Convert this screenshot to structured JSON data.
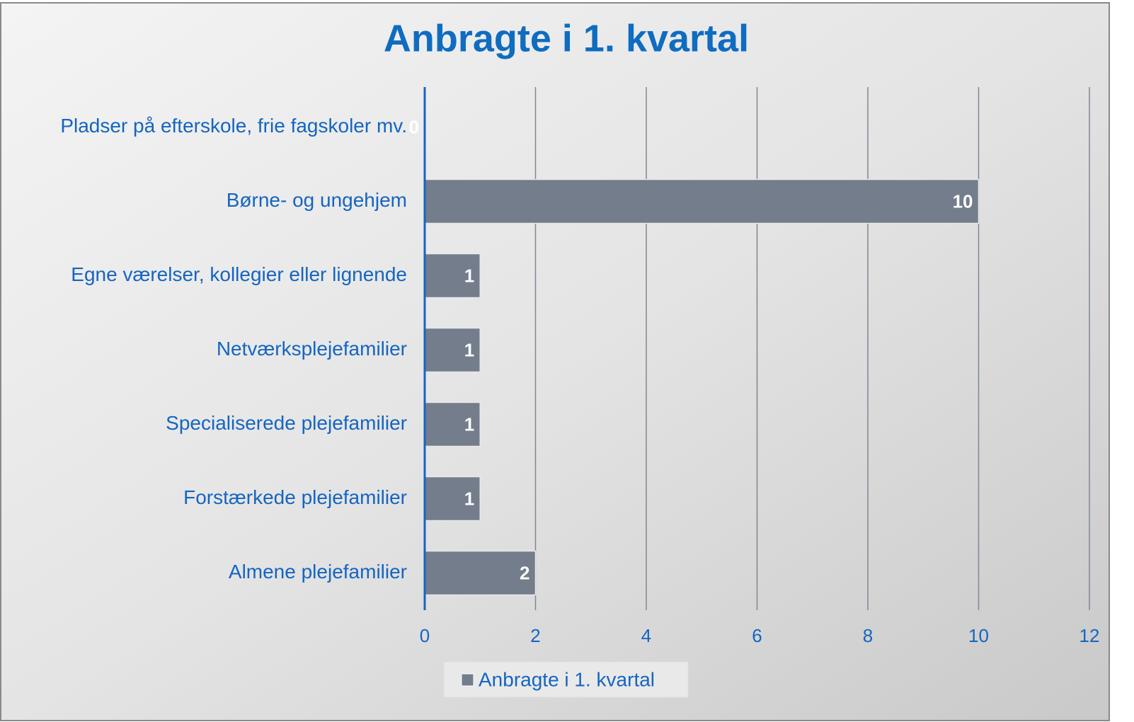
{
  "chart_data": {
    "type": "barh",
    "title": "Anbragte i 1. kvartal",
    "categories": [
      "Pladser på efterskole, frie fagskoler mv.",
      "Børne- og ungehjem",
      "Egne værelser, kollegier eller lignende",
      "Netværksplejefamilier",
      "Specialiserede plejefamilier",
      "Forstærkede plejefamilier",
      "Almene plejefamilier"
    ],
    "series": [
      {
        "name": "Anbragte i 1. kvartal",
        "color": "#737d8c",
        "values": [
          0,
          10,
          1,
          1,
          1,
          1,
          2
        ]
      }
    ],
    "xlim": [
      0,
      12
    ],
    "xticks": [
      0,
      2,
      4,
      6,
      8,
      10,
      12
    ],
    "grid": true,
    "legend": "bottom"
  }
}
